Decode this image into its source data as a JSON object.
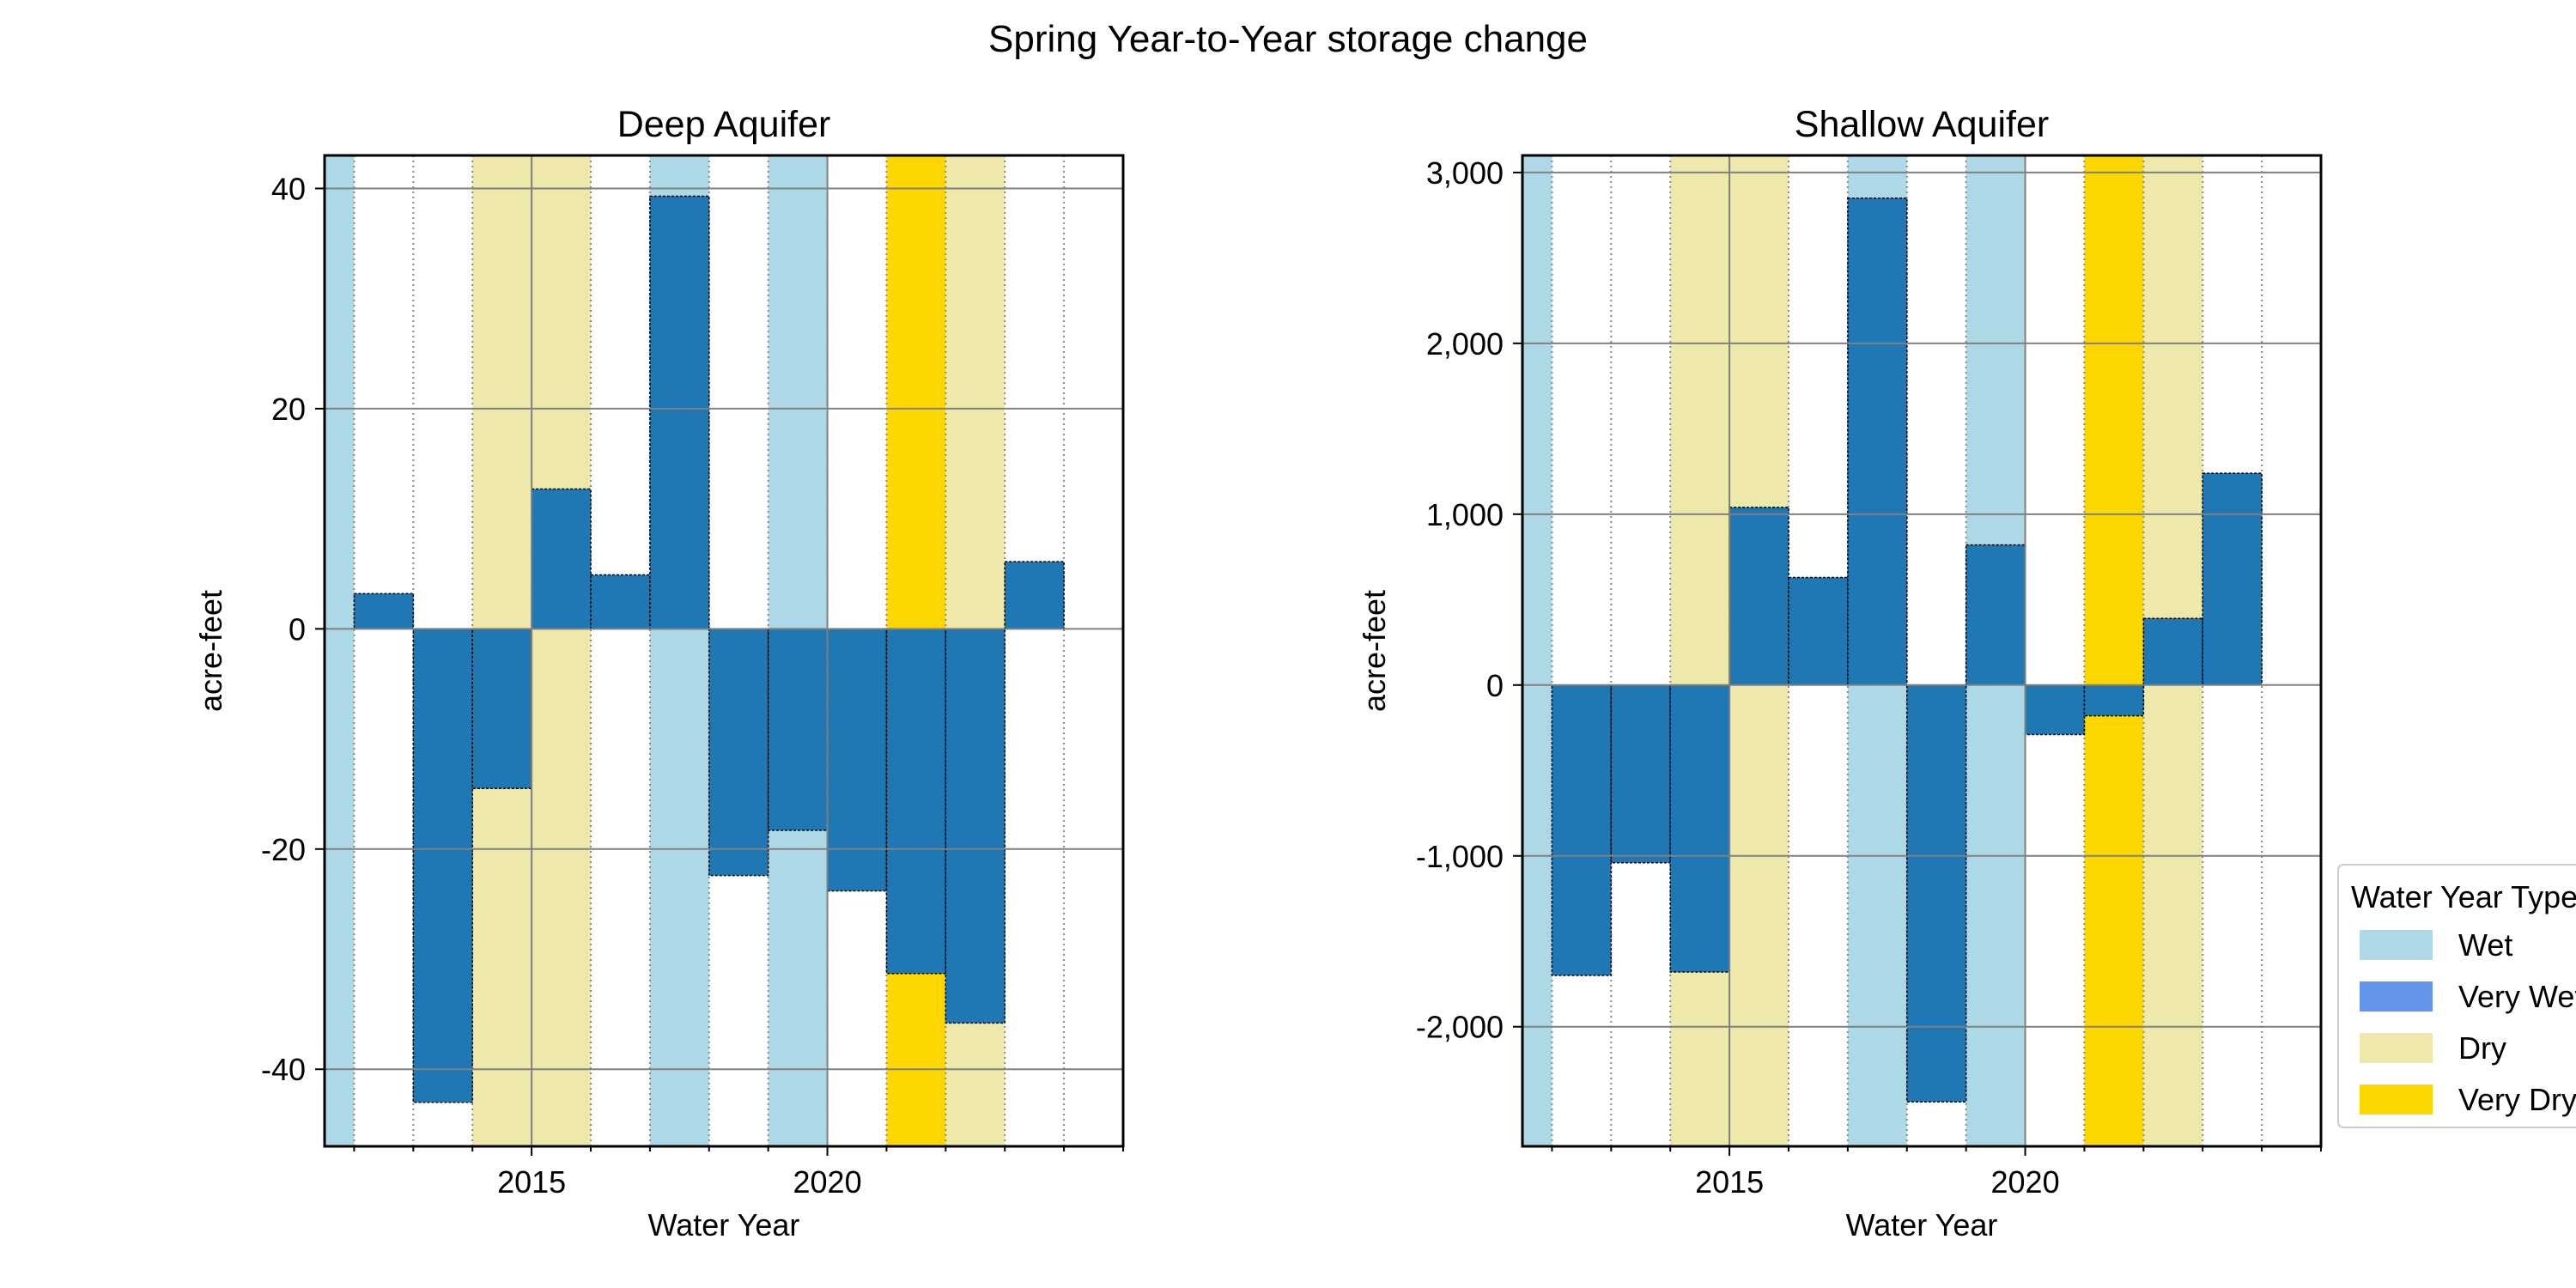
{
  "figure": {
    "suptitle": "Spring Year-to-Year storage change",
    "colors": {
      "bar": "#1f77b4",
      "wet": "#add8e6",
      "very_wet": "#6495ed",
      "dry": "#eee8aa",
      "very_dry": "#ffd700",
      "grid": "#808080",
      "axis": "#000000"
    },
    "water_year_types": [
      {
        "year": 2012,
        "type": "wet"
      },
      {
        "year": 2013,
        "type": "none"
      },
      {
        "year": 2014,
        "type": "none"
      },
      {
        "year": 2015,
        "type": "dry"
      },
      {
        "year": 2016,
        "type": "dry"
      },
      {
        "year": 2017,
        "type": "none"
      },
      {
        "year": 2018,
        "type": "wet"
      },
      {
        "year": 2019,
        "type": "none"
      },
      {
        "year": 2020,
        "type": "wet"
      },
      {
        "year": 2021,
        "type": "none"
      },
      {
        "year": 2022,
        "type": "very_dry"
      },
      {
        "year": 2023,
        "type": "dry"
      },
      {
        "year": 2024,
        "type": "none"
      }
    ],
    "legend": {
      "title": "Water Year Type",
      "placement": "right-center, outside plot area (clipped at image edge)",
      "entries": [
        {
          "label": "Wet",
          "type": "wet"
        },
        {
          "label": "Very Wet",
          "type": "very_wet"
        },
        {
          "label": "Dry",
          "type": "dry"
        },
        {
          "label": "Very Dry",
          "type": "very_dry"
        }
      ]
    }
  },
  "chart_data": [
    {
      "type": "bar",
      "title": "Deep Aquifer",
      "xlabel": "Water Year",
      "ylabel": "acre-feet",
      "xlim": [
        2011.5,
        2025
      ],
      "ylim": [
        -47,
        43
      ],
      "yticks": [
        40,
        20,
        0,
        -20,
        -40
      ],
      "ytick_labels": [
        "40",
        "20",
        "0",
        "-20",
        "-40"
      ],
      "xticks": [
        2015,
        2020
      ],
      "xtick_labels": [
        "2015",
        "2020"
      ],
      "grid": true,
      "x": [
        2013,
        2014,
        2015,
        2016,
        2017,
        2018,
        2019,
        2020,
        2021,
        2022,
        2023,
        2024
      ],
      "values": [
        3.2,
        -43.0,
        -14.5,
        12.7,
        4.9,
        39.3,
        -22.4,
        -18.3,
        -23.8,
        -31.3,
        -35.8,
        6.1
      ]
    },
    {
      "type": "bar",
      "title": "Shallow  Aquifer",
      "xlabel": "Water Year",
      "ylabel": "acre-feet",
      "xlim": [
        2011.5,
        2025
      ],
      "ylim": [
        -2700,
        3100
      ],
      "yticks": [
        3000,
        2000,
        1000,
        0,
        -1000,
        -2000
      ],
      "ytick_labels": [
        "3,000",
        "2,000",
        "1,000",
        "0",
        "-1,000",
        "-2,000"
      ],
      "xticks": [
        2015,
        2020
      ],
      "xtick_labels": [
        "2015",
        "2020"
      ],
      "grid": true,
      "x": [
        2013,
        2014,
        2015,
        2016,
        2017,
        2018,
        2019,
        2020,
        2021,
        2022,
        2023,
        2024
      ],
      "values": [
        -1700,
        -1040,
        -1680,
        1040,
        630,
        2850,
        -2440,
        820,
        -290,
        -180,
        390,
        1240
      ]
    }
  ]
}
